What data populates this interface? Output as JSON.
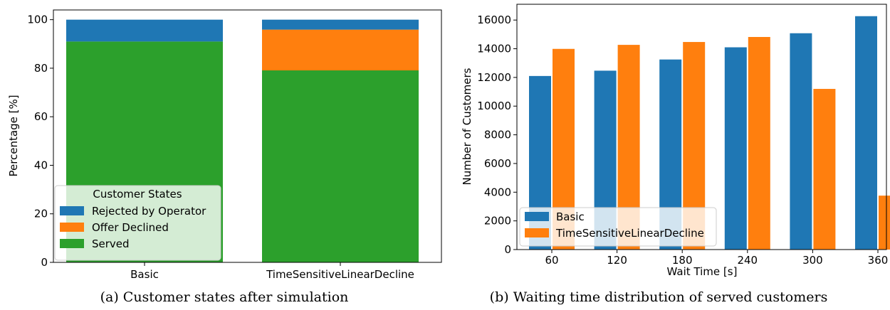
{
  "colors": {
    "blue": "#1f77b4",
    "orange": "#ff7f0e",
    "green": "#2ca02c"
  },
  "chart_data": [
    {
      "type": "bar",
      "stacked": true,
      "caption": "(a) Customer states after simulation",
      "ylabel": "Percentage [%]",
      "xlabel": "",
      "categories": [
        "Basic",
        "TimeSensitiveLinearDecline"
      ],
      "ylim": [
        0,
        104
      ],
      "yticks": [
        0,
        20,
        40,
        60,
        80,
        100
      ],
      "series": [
        {
          "name": "Served",
          "color": "#2ca02c",
          "values": [
            91.0,
            79.1
          ]
        },
        {
          "name": "Offer Declined",
          "color": "#ff7f0e",
          "values": [
            0,
            16.8
          ]
        },
        {
          "name": "Rejected by Operator",
          "color": "#1f77b4",
          "values": [
            9.0,
            4.1
          ]
        }
      ],
      "legend": {
        "title": "Customer States",
        "position": "lower-left",
        "entries": [
          "Rejected by Operator",
          "Offer Declined",
          "Served"
        ]
      },
      "grid": false
    },
    {
      "type": "bar",
      "stacked": false,
      "caption": "(b) Waiting time distribution of served customers",
      "ylabel": "Number of Customers",
      "xlabel": "Wait Time [s]",
      "categories": [
        "60",
        "120",
        "180",
        "240",
        "300",
        "360"
      ],
      "ylim": [
        0,
        17100
      ],
      "yticks": [
        0,
        2000,
        4000,
        6000,
        8000,
        10000,
        12000,
        14000,
        16000
      ],
      "series": [
        {
          "name": "Basic",
          "color": "#1f77b4",
          "values": [
            12100,
            12470,
            13250,
            14100,
            15080,
            16270
          ]
        },
        {
          "name": "TimeSensitiveLinearDecline",
          "color": "#ff7f0e",
          "values": [
            13990,
            14270,
            14470,
            14820,
            11200,
            3760
          ]
        }
      ],
      "legend": {
        "position": "lower-left",
        "entries": [
          "Basic",
          "TimeSensitiveLinearDecline"
        ]
      },
      "grid": false
    }
  ]
}
